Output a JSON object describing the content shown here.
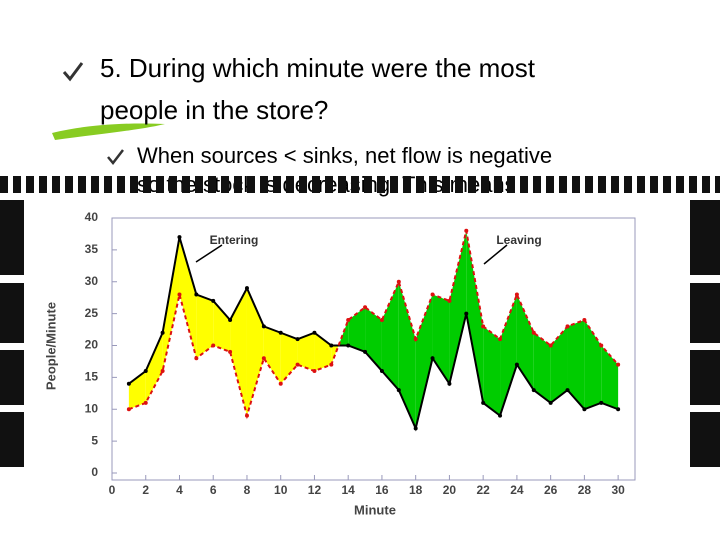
{
  "slide": {
    "bullet_1_line_1": "5.  During which minute were the most",
    "bullet_1_line_2": "people in the store?",
    "bullet_2_line_1": "When sources < sinks, net flow is negative",
    "bullet_2_line_2": "so the stock is decreasing. This means"
  },
  "chart_data": {
    "type": "line",
    "xlabel": "Minute",
    "ylabel": "People/Minute",
    "x": [
      1,
      2,
      3,
      4,
      5,
      6,
      7,
      8,
      9,
      10,
      11,
      12,
      13,
      14,
      15,
      16,
      17,
      18,
      19,
      20,
      21,
      22,
      23,
      24,
      25,
      26,
      27,
      28,
      29,
      30
    ],
    "series": [
      {
        "name": "Entering",
        "color": "#000000",
        "values": [
          14,
          16,
          22,
          37,
          28,
          27,
          24,
          29,
          23,
          22,
          21,
          22,
          20,
          20,
          19,
          16,
          13,
          7,
          18,
          14,
          25,
          11,
          9,
          17,
          13,
          11,
          13,
          10,
          11,
          10
        ]
      },
      {
        "name": "Leaving",
        "color": "#dd1111",
        "values": [
          10,
          11,
          16,
          28,
          18,
          20,
          19,
          9,
          18,
          14,
          17,
          16,
          17,
          24,
          26,
          24,
          30,
          21,
          28,
          27,
          38,
          23,
          21,
          28,
          22,
          20,
          23,
          24,
          20,
          17
        ]
      }
    ],
    "fill_colors": {
      "surplus": "#ffff00",
      "deficit": "#00cc00"
    },
    "xlim": [
      0,
      31
    ],
    "xticks": [
      0,
      2,
      4,
      6,
      8,
      10,
      12,
      14,
      16,
      18,
      20,
      22,
      24,
      26,
      28,
      30
    ],
    "ylim": [
      0,
      40
    ],
    "yticks": [
      0,
      5,
      10,
      15,
      20,
      25,
      30,
      35,
      40
    ]
  }
}
